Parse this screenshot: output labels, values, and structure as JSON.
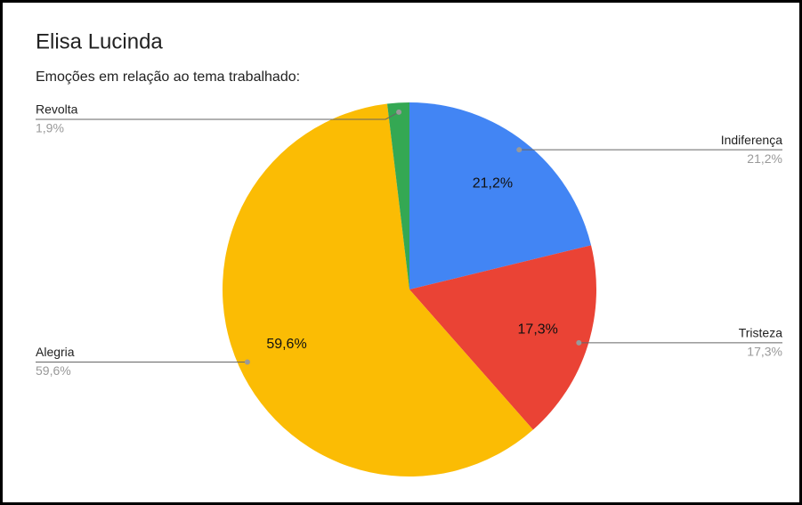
{
  "chart_data": {
    "type": "pie",
    "title": "Elisa Lucinda",
    "subtitle": "Emoções em relação ao tema trabalhado:",
    "categories": [
      "Indiferença",
      "Tristeza",
      "Alegria",
      "Revolta"
    ],
    "values": [
      21.2,
      17.3,
      59.6,
      1.9
    ],
    "value_labels": [
      "21,2%",
      "17,3%",
      "59,6%",
      "1,9%"
    ],
    "colors": [
      "#4285f4",
      "#ea4335",
      "#fbbc04",
      "#34a853"
    ]
  }
}
